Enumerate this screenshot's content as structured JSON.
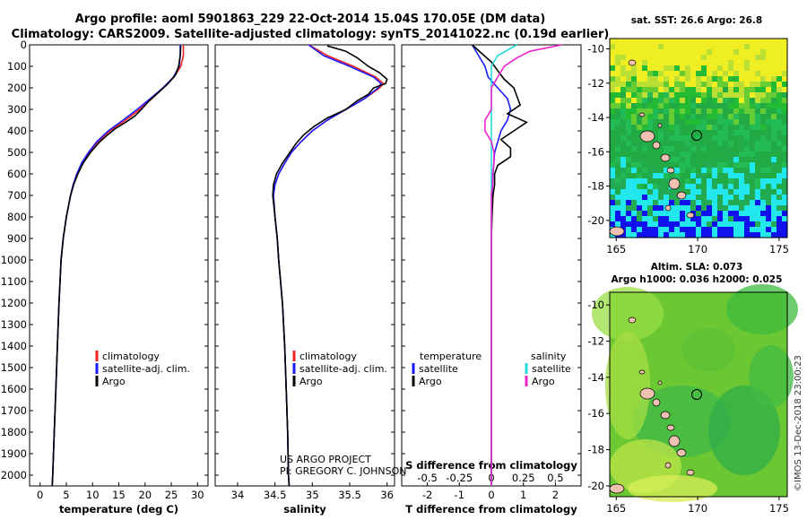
{
  "header": {
    "line1": "Argo profile: aoml 5901863_229 22-Oct-2014 15.04S 170.05E (DM data)",
    "line2": "Climatology: CARS2009. Satellite-adjusted climatology: synTS_20141022.nc (0.19d earlier)"
  },
  "colors": {
    "climatology": "#ee2222",
    "satellite": "#1a1aff",
    "argo": "#000000",
    "sal_satellite": "#22dddd",
    "sal_argo": "#ee22cc"
  },
  "legend": {
    "climatology": "climatology",
    "satellite": "satellite-adj. clim.",
    "argo": "Argo"
  },
  "diff_legend": {
    "temperature": "temperature",
    "salinity": "salinity",
    "satellite": "satellite",
    "argo": "Argo"
  },
  "credit": {
    "line1": "US ARGO PROJECT",
    "line2": "PI: GREGORY C. JOHNSON"
  },
  "maps": {
    "sst_title": "sat. SST: 26.6 Argo: 26.8",
    "sla_title1": "Altim. SLA: 0.073",
    "sla_title2": "Argo h1000: 0.036 h2000: 0.025",
    "lat_ticks": [
      "-10",
      "-12",
      "-14",
      "-16",
      "-18",
      "-20"
    ],
    "lon_ticks": [
      "165",
      "170",
      "175"
    ],
    "watermark": "©IMOS 13-Dec-2018 23:00:23"
  },
  "chart_data": [
    {
      "type": "line",
      "title": "",
      "xlabel": "temperature (deg C)",
      "ylabel": "",
      "xlim": [
        -2,
        32
      ],
      "ylim": [
        2050,
        0
      ],
      "x_ticks": [
        "0",
        "5",
        "10",
        "15",
        "20",
        "25",
        "30"
      ],
      "y_ticks": [
        "0",
        "100",
        "200",
        "300",
        "400",
        "500",
        "600",
        "700",
        "800",
        "900",
        "1000",
        "1100",
        "1200",
        "1300",
        "1400",
        "1500",
        "1600",
        "1700",
        "1800",
        "1900",
        "2000"
      ],
      "series": [
        {
          "name": "climatology",
          "depth": [
            0,
            50,
            100,
            150,
            200,
            250,
            300,
            350,
            400,
            450,
            500,
            550,
            600,
            650,
            700,
            800,
            900,
            1000,
            1200,
            1400,
            1600,
            1800,
            2000,
            2050
          ],
          "values": [
            27.3,
            27.3,
            26.8,
            25.5,
            23.5,
            21.3,
            19.0,
            16.3,
            13.3,
            11.0,
            9.3,
            8.0,
            7.0,
            6.3,
            5.8,
            5.0,
            4.4,
            4.0,
            3.6,
            3.3,
            3.0,
            2.7,
            2.4,
            2.3
          ]
        },
        {
          "name": "satellite-adj. clim.",
          "depth": [
            0,
            50,
            100,
            150,
            200,
            250,
            300,
            350,
            400,
            450,
            500,
            550,
            600,
            650,
            700,
            800,
            900,
            1000,
            1200,
            1400,
            1600,
            1800,
            2000,
            2050
          ],
          "values": [
            26.7,
            26.7,
            26.5,
            25.4,
            23.4,
            21.0,
            18.5,
            15.8,
            13.0,
            10.8,
            9.2,
            7.9,
            7.0,
            6.3,
            5.8,
            5.0,
            4.4,
            4.0,
            3.6,
            3.3,
            3.0,
            2.7,
            2.4,
            2.3
          ]
        },
        {
          "name": "Argo",
          "depth": [
            5,
            50,
            100,
            140,
            180,
            220,
            260,
            300,
            330,
            360,
            390,
            420,
            450,
            500,
            550,
            600,
            650,
            700,
            800,
            900,
            1000,
            1200,
            1400,
            1600,
            1800,
            2000,
            2050
          ],
          "values": [
            26.8,
            26.7,
            26.4,
            25.8,
            24.4,
            22.6,
            20.8,
            19.3,
            18.1,
            16.3,
            14.3,
            12.8,
            11.4,
            9.6,
            8.2,
            7.2,
            6.4,
            5.8,
            5.0,
            4.4,
            4.0,
            3.6,
            3.3,
            3.0,
            2.7,
            2.4,
            2.3
          ]
        }
      ]
    },
    {
      "type": "line",
      "xlabel": "salinity",
      "xlim": [
        33.7,
        36.1
      ],
      "ylim": [
        2050,
        0
      ],
      "x_ticks": [
        "34",
        "34.5",
        "35",
        "35.5",
        "36"
      ],
      "series": [
        {
          "name": "climatology",
          "depth": [
            0,
            50,
            100,
            150,
            180,
            200,
            250,
            300,
            350,
            400,
            450,
            500,
            550,
            600,
            650,
            700,
            800,
            900,
            1000,
            1200,
            1400,
            1600,
            1800,
            2000,
            2050
          ],
          "values": [
            34.95,
            35.2,
            35.55,
            35.85,
            35.95,
            35.9,
            35.7,
            35.45,
            35.2,
            35.0,
            34.85,
            34.72,
            34.63,
            34.55,
            34.5,
            34.48,
            34.5,
            34.53,
            34.55,
            34.6,
            34.63,
            34.65,
            34.67,
            34.68,
            34.69
          ]
        },
        {
          "name": "satellite-adj. clim.",
          "depth": [
            0,
            50,
            100,
            150,
            180,
            200,
            250,
            300,
            350,
            400,
            450,
            500,
            550,
            600,
            650,
            700,
            800,
            900,
            1000,
            1200,
            1400,
            1600,
            1800,
            2000,
            2050
          ],
          "values": [
            34.95,
            35.15,
            35.5,
            35.82,
            35.92,
            35.88,
            35.7,
            35.45,
            35.2,
            35.0,
            34.85,
            34.72,
            34.63,
            34.55,
            34.5,
            34.48,
            34.5,
            34.53,
            34.55,
            34.6,
            34.63,
            34.65,
            34.67,
            34.68,
            34.69
          ]
        },
        {
          "name": "Argo",
          "depth": [
            5,
            30,
            60,
            100,
            130,
            160,
            180,
            200,
            230,
            260,
            300,
            340,
            380,
            420,
            460,
            500,
            550,
            600,
            650,
            700,
            800,
            900,
            1000,
            1200,
            1400,
            1600,
            1800,
            2000,
            2050
          ],
          "values": [
            35.2,
            35.45,
            35.6,
            35.75,
            35.9,
            36.0,
            35.98,
            35.82,
            35.75,
            35.6,
            35.45,
            35.2,
            35.02,
            34.88,
            34.78,
            34.7,
            34.6,
            34.52,
            34.48,
            34.47,
            34.5,
            34.53,
            34.55,
            34.6,
            34.63,
            34.65,
            34.67,
            34.68,
            34.69
          ]
        }
      ]
    },
    {
      "type": "line",
      "xlabel": "T difference from climatology",
      "xlabel2": "S difference from climatology",
      "xlim": [
        -2.8,
        2.8
      ],
      "ylim": [
        2050,
        0
      ],
      "x_ticks": [
        "-2",
        "-1",
        "0",
        "1",
        "2"
      ],
      "x_ticks_top": [
        "-0.5",
        "-0.25",
        "0",
        "0.25",
        "0.5"
      ],
      "series": [
        {
          "name": "temperature satellite",
          "depth": [
            0,
            50,
            100,
            150,
            200,
            250,
            300,
            350,
            400,
            500,
            600,
            700,
            800,
            1000,
            1200,
            1500,
            1800,
            2000,
            2050
          ],
          "values": [
            -0.6,
            -0.4,
            -0.2,
            -0.1,
            0.2,
            0.5,
            0.6,
            0.5,
            0.3,
            0.1,
            0.05,
            0.02,
            0.0,
            0.0,
            0.0,
            0.0,
            0.0,
            0.0,
            0.0
          ]
        },
        {
          "name": "temperature Argo",
          "depth": [
            0,
            40,
            80,
            120,
            160,
            200,
            240,
            280,
            320,
            360,
            400,
            440,
            480,
            520,
            560,
            600,
            650,
            700,
            800,
            900,
            1000,
            1200,
            1500,
            1800,
            2000,
            2050
          ],
          "values": [
            -0.6,
            -0.3,
            0.0,
            0.2,
            0.4,
            0.7,
            0.8,
            0.9,
            0.5,
            1.1,
            0.7,
            0.3,
            0.6,
            0.6,
            0.2,
            0.1,
            0.1,
            0.05,
            0.02,
            0.0,
            0.0,
            0.0,
            0.0,
            0.0,
            0.0,
            0.0
          ]
        },
        {
          "name": "salinity satellite",
          "depth": [
            0,
            50,
            100,
            150,
            200,
            300,
            400,
            500,
            600,
            700,
            800,
            1000,
            1200,
            1500,
            1800,
            2000,
            2050
          ],
          "values": [
            0.2,
            0.05,
            0.0,
            0.0,
            0.0,
            0.0,
            0.0,
            0.0,
            0.0,
            0.0,
            0.0,
            0.0,
            0.0,
            0.0,
            0.0,
            0.0,
            0.0
          ]
        },
        {
          "name": "salinity Argo",
          "depth": [
            0,
            30,
            60,
            100,
            150,
            200,
            250,
            300,
            350,
            400,
            450,
            500,
            550,
            600,
            650,
            700,
            800,
            900,
            1000,
            1200,
            1500,
            1800,
            2000,
            2050
          ],
          "values": [
            0.55,
            0.3,
            0.2,
            0.1,
            0.05,
            0.0,
            0.0,
            0.0,
            -0.05,
            -0.05,
            0.0,
            0.02,
            0.02,
            0.01,
            0.01,
            0.0,
            0.0,
            0.0,
            0.0,
            0.0,
            0.0,
            0.0,
            0.0,
            0.0
          ]
        }
      ]
    }
  ]
}
